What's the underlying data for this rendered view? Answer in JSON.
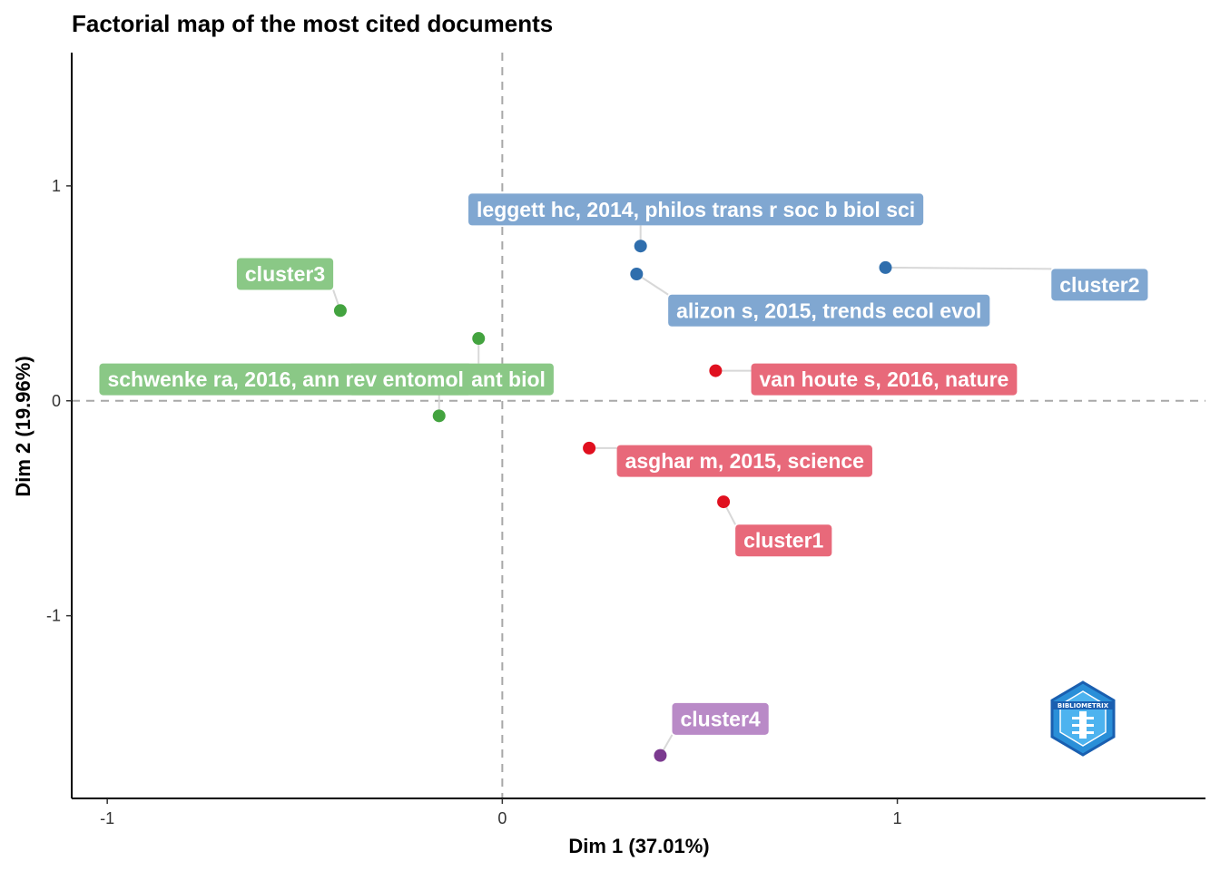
{
  "chart_data": {
    "type": "scatter",
    "title": "Factorial map of the most cited documents",
    "xlabel": "Dim 1 (37.01%)",
    "ylabel": "Dim 2 (19.96%)",
    "xlim": [
      -1.09,
      1.78
    ],
    "ylim": [
      -1.85,
      1.62
    ],
    "xticks": [
      -1,
      0,
      1
    ],
    "yticks": [
      -1,
      0,
      1
    ],
    "xtick_labels": [
      "-1",
      "0",
      "1"
    ],
    "ytick_labels": [
      "-1",
      "0",
      "1"
    ],
    "reference_lines": {
      "x": 0,
      "y": 0,
      "style": "dashed"
    },
    "grid": false,
    "colors": {
      "cluster1_point": "#e0101f",
      "cluster1_label": "#e8697a",
      "cluster2_point": "#2f6ead",
      "cluster2_label": "#80a7d1",
      "cluster3_point": "#43a33f",
      "cluster3_label": "#8ac886",
      "cluster4_point": "#7b3a8f",
      "cluster4_label": "#b98ac7",
      "leader": "#d8d8d8",
      "reference": "#a8a8a8"
    },
    "points": [
      {
        "x": 0.35,
        "y": 0.72,
        "cluster": 2,
        "label": "leggett hc, 2014, philos trans r soc b biol sci",
        "lx": 0.49,
        "ly": 0.89,
        "anchor": "middle"
      },
      {
        "x": 0.34,
        "y": 0.59,
        "cluster": 2,
        "label": "alizon s, 2015, trends ecol evol",
        "lx": 0.42,
        "ly": 0.42,
        "anchor": "start"
      },
      {
        "x": 0.97,
        "y": 0.62,
        "cluster": 2,
        "label": "cluster2",
        "lx": 1.39,
        "ly": 0.54,
        "anchor": "start"
      },
      {
        "x": 0.54,
        "y": 0.14,
        "cluster": 1,
        "label": "van houte s, 2016, nature",
        "lx": 0.63,
        "ly": 0.1,
        "anchor": "start"
      },
      {
        "x": 0.22,
        "y": -0.22,
        "cluster": 1,
        "label": "asghar m, 2015, science",
        "lx": 0.29,
        "ly": -0.28,
        "anchor": "start"
      },
      {
        "x": 0.56,
        "y": -0.47,
        "cluster": 1,
        "label": "cluster1",
        "lx": 0.59,
        "ly": -0.65,
        "anchor": "start"
      },
      {
        "x": -0.41,
        "y": 0.42,
        "cluster": 3,
        "label": "cluster3",
        "lx": -0.55,
        "ly": 0.59,
        "anchor": "middle"
      },
      {
        "x": -0.06,
        "y": 0.29,
        "cluster": 3,
        "label": "trends plant sci? curr opin plant biol",
        "lx": -0.39,
        "ly": 0.1,
        "anchor": "start",
        "display": "curr opin plant biol"
      },
      {
        "x": -0.16,
        "y": -0.07,
        "cluster": 3,
        "label": "schwenke ra, 2016, annu rev entomol",
        "lx": -1.02,
        "ly": 0.1,
        "anchor": "start",
        "display": "schwenke ra, 2016, ann rev entomol"
      },
      {
        "x": 0.4,
        "y": -1.65,
        "cluster": 4,
        "label": "cluster4",
        "lx": 0.43,
        "ly": -1.48,
        "anchor": "start"
      }
    ],
    "logo": "bibliometrix-logo"
  }
}
